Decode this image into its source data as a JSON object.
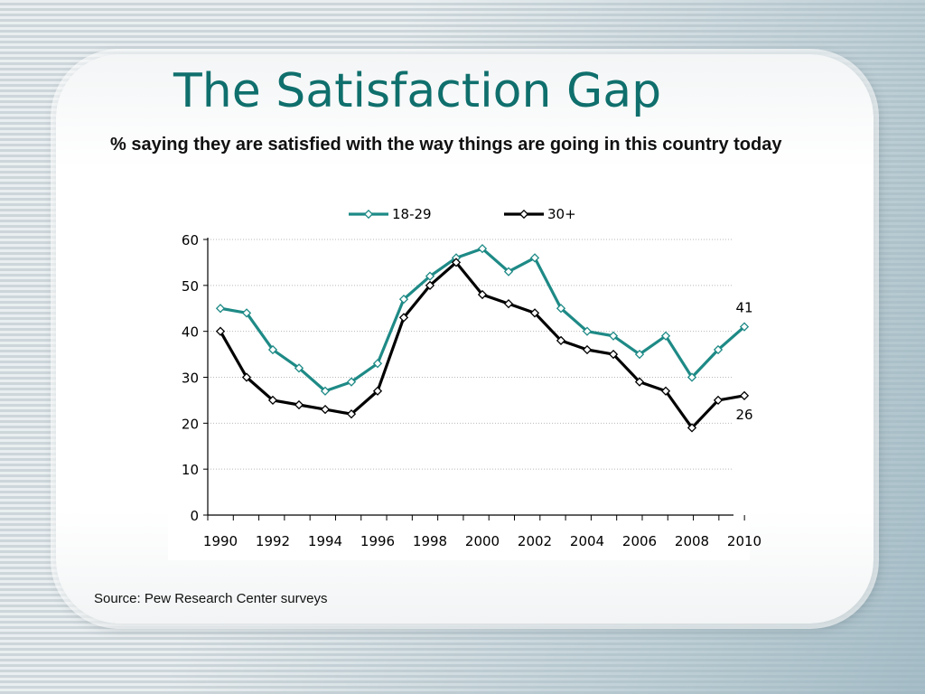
{
  "slide": {
    "title": "The Satisfaction Gap",
    "source": "Source: Pew Research Center surveys"
  },
  "colors": {
    "series_18_29": "#1e8a86",
    "series_30_plus": "#000000",
    "title": "#0f6f6c"
  },
  "chart_data": {
    "type": "line",
    "title": "% saying they are satisfied with the way things are going in this country today",
    "xlabel": "",
    "ylabel": "",
    "xlim": [
      1990,
      2010
    ],
    "ylim": [
      0,
      60
    ],
    "yticks": [
      0,
      10,
      20,
      30,
      40,
      50,
      60
    ],
    "xticks": [
      1990,
      1992,
      1994,
      1996,
      1998,
      2000,
      2002,
      2004,
      2006,
      2008,
      2010
    ],
    "grid": true,
    "legend_position": "top",
    "series": [
      {
        "name": "18-29",
        "color": "#1e8a86",
        "points": [
          [
            1990,
            45
          ],
          [
            1991,
            44
          ],
          [
            1992,
            36
          ],
          [
            1993,
            32
          ],
          [
            1994,
            27
          ],
          [
            1995,
            29
          ],
          [
            1996,
            33
          ],
          [
            1997,
            47
          ],
          [
            1998,
            52
          ],
          [
            1999,
            56
          ],
          [
            2000,
            58
          ],
          [
            2001,
            53
          ],
          [
            2002,
            56
          ],
          [
            2003,
            45
          ],
          [
            2004,
            40
          ],
          [
            2005,
            39
          ],
          [
            2006,
            35
          ],
          [
            2007,
            39
          ],
          [
            2008,
            30
          ],
          [
            2009,
            36
          ],
          [
            2010,
            41
          ]
        ],
        "end_label": "41"
      },
      {
        "name": "30+",
        "color": "#000000",
        "points": [
          [
            1990,
            40
          ],
          [
            1991,
            30
          ],
          [
            1992,
            25
          ],
          [
            1993,
            24
          ],
          [
            1994,
            23
          ],
          [
            1995,
            22
          ],
          [
            1996,
            27
          ],
          [
            1997,
            43
          ],
          [
            1998,
            50
          ],
          [
            1999,
            55
          ],
          [
            2000,
            48
          ],
          [
            2001,
            46
          ],
          [
            2002,
            44
          ],
          [
            2003,
            38
          ],
          [
            2004,
            36
          ],
          [
            2005,
            35
          ],
          [
            2006,
            29
          ],
          [
            2007,
            27
          ],
          [
            2008,
            19
          ],
          [
            2009,
            25
          ],
          [
            2010,
            26
          ]
        ],
        "end_label": "26"
      }
    ]
  }
}
